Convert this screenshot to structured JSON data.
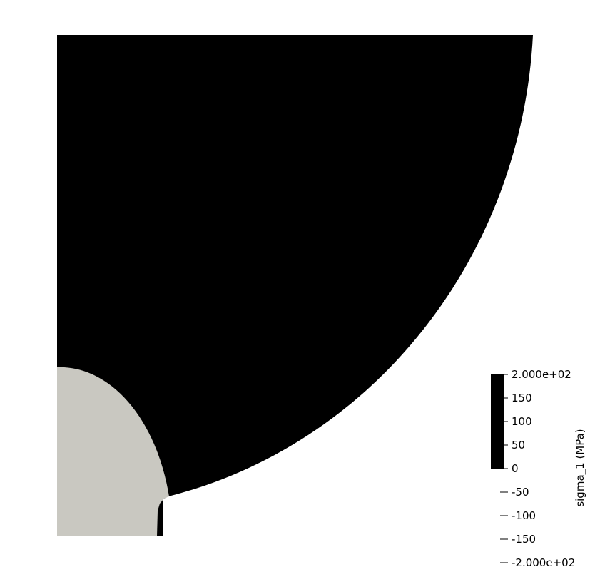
{
  "scene": {
    "background_color": "#ffffff",
    "domain_color": "#000000",
    "inclusion_color": "#c9c8c1"
  },
  "colorbar": {
    "title": "sigma_1 (MPa)",
    "bar_color": "#000000",
    "range": [
      -200,
      200
    ],
    "filled_range": [
      0,
      200
    ],
    "ticks": [
      {
        "value": 200,
        "label": "2.000e+02"
      },
      {
        "value": 150,
        "label": "150"
      },
      {
        "value": 100,
        "label": "100"
      },
      {
        "value": 50,
        "label": "50"
      },
      {
        "value": 0,
        "label": "0"
      },
      {
        "value": -50,
        "label": "-50"
      },
      {
        "value": -100,
        "label": "-100"
      },
      {
        "value": -150,
        "label": "-150"
      },
      {
        "value": -200,
        "label": "-2.000e+02"
      }
    ]
  }
}
